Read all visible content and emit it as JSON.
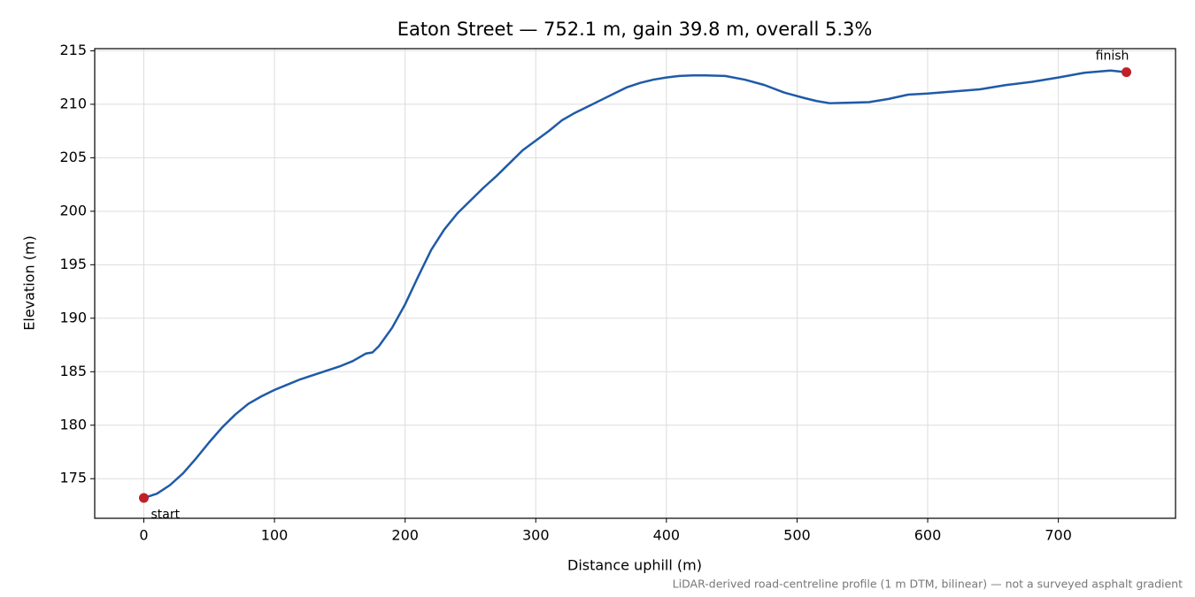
{
  "chart_data": {
    "type": "line",
    "title": "Eaton Street — 752.1 m, gain 39.8 m, overall 5.3%",
    "x_label": "Distance uphill (m)",
    "y_label": "Elevation (m)",
    "footnote": "LiDAR-derived road-centreline profile (1 m DTM, bilinear) — not a surveyed asphalt gradient",
    "x": [
      0,
      10,
      20,
      30,
      40,
      50,
      60,
      70,
      80,
      90,
      100,
      110,
      120,
      130,
      140,
      150,
      160,
      170,
      175,
      180,
      190,
      200,
      210,
      220,
      230,
      240,
      250,
      260,
      270,
      280,
      290,
      300,
      310,
      320,
      330,
      340,
      350,
      360,
      370,
      380,
      390,
      400,
      410,
      420,
      430,
      445,
      460,
      475,
      490,
      505,
      515,
      525,
      540,
      555,
      570,
      585,
      600,
      620,
      640,
      660,
      680,
      700,
      720,
      740,
      752.1
    ],
    "series": [
      {
        "color": "#1f5aa8",
        "values": [
          173.2,
          173.6,
          174.4,
          175.5,
          176.9,
          178.4,
          179.8,
          181.0,
          182.0,
          182.7,
          183.3,
          183.8,
          184.3,
          184.7,
          185.1,
          185.5,
          186.0,
          186.7,
          186.8,
          187.4,
          189.1,
          191.3,
          193.9,
          196.4,
          198.3,
          199.8,
          201.0,
          202.2,
          203.3,
          204.5,
          205.7,
          206.6,
          207.5,
          208.5,
          209.2,
          209.8,
          210.4,
          211.0,
          211.6,
          212.0,
          212.3,
          212.5,
          212.65,
          212.7,
          212.7,
          212.65,
          212.3,
          211.8,
          211.1,
          210.6,
          210.3,
          210.1,
          210.15,
          210.2,
          210.5,
          210.9,
          211.0,
          211.2,
          211.4,
          211.8,
          212.1,
          212.5,
          212.95,
          213.15,
          213.0
        ]
      }
    ],
    "points": [
      {
        "label": "start",
        "x": 0,
        "y": 173.2
      },
      {
        "label": "finish",
        "x": 752.1,
        "y": 213.0
      }
    ],
    "marker_color": "#c0202a",
    "xlim": [
      -37.6,
      789.7
    ],
    "ylim": [
      171.3,
      215.2
    ],
    "xticks": [
      0,
      100,
      200,
      300,
      400,
      500,
      600,
      700
    ],
    "yticks": [
      175,
      180,
      185,
      190,
      195,
      200,
      205,
      210,
      215
    ],
    "grid": true
  }
}
